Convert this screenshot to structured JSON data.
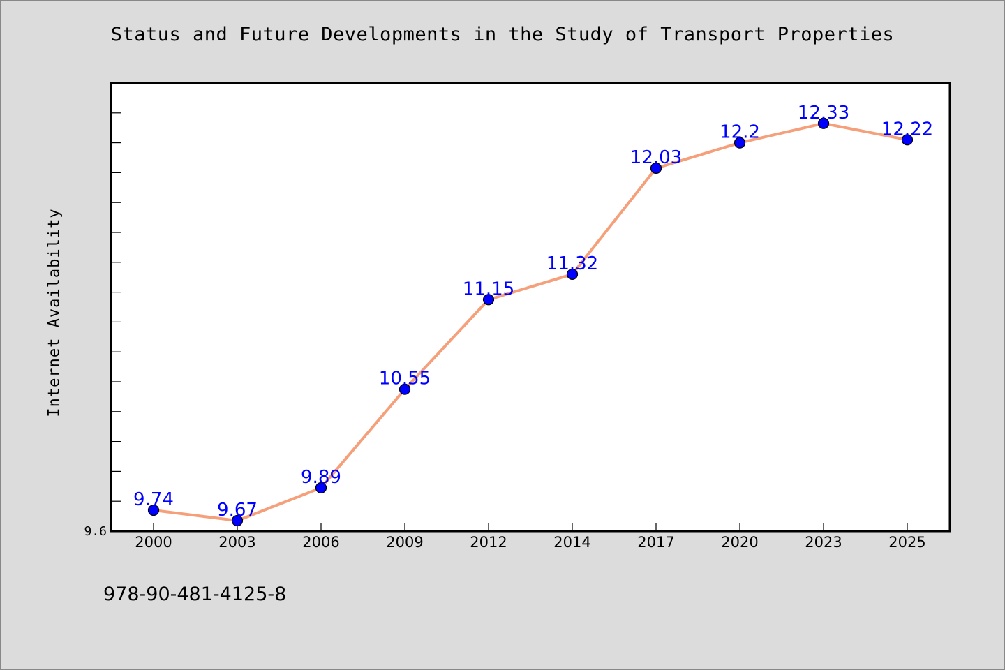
{
  "title": "Status and Future Developments in the Study of Transport Properties",
  "isbn": "978-90-481-4125-8",
  "chart_data": {
    "type": "line",
    "title": "Status and Future Developments in the Study of Transport Properties",
    "xlabel": "",
    "ylabel": "Internet Availability",
    "categories": [
      "2000",
      "2003",
      "2006",
      "2009",
      "2012",
      "2014",
      "2017",
      "2020",
      "2023",
      "2025"
    ],
    "series": [
      {
        "values": [
          9.74,
          9.67,
          9.89,
          10.55,
          11.15,
          11.32,
          12.03,
          12.2,
          12.33,
          12.22
        ],
        "data_labels": [
          "9.74",
          "9.67",
          "9.89",
          "10.55",
          "11.15",
          "11.32",
          "12.03",
          "12.2",
          "12.33",
          "12.22"
        ],
        "line_color": "#f5a07a",
        "marker_color": "#0000ff"
      }
    ],
    "ylim": [
      9.6,
      12.6
    ],
    "y_tick_labels": [
      "9.6"
    ],
    "grid": false,
    "legend": "none",
    "background": "#dcdcdc",
    "plot_background": "#ffffff"
  }
}
